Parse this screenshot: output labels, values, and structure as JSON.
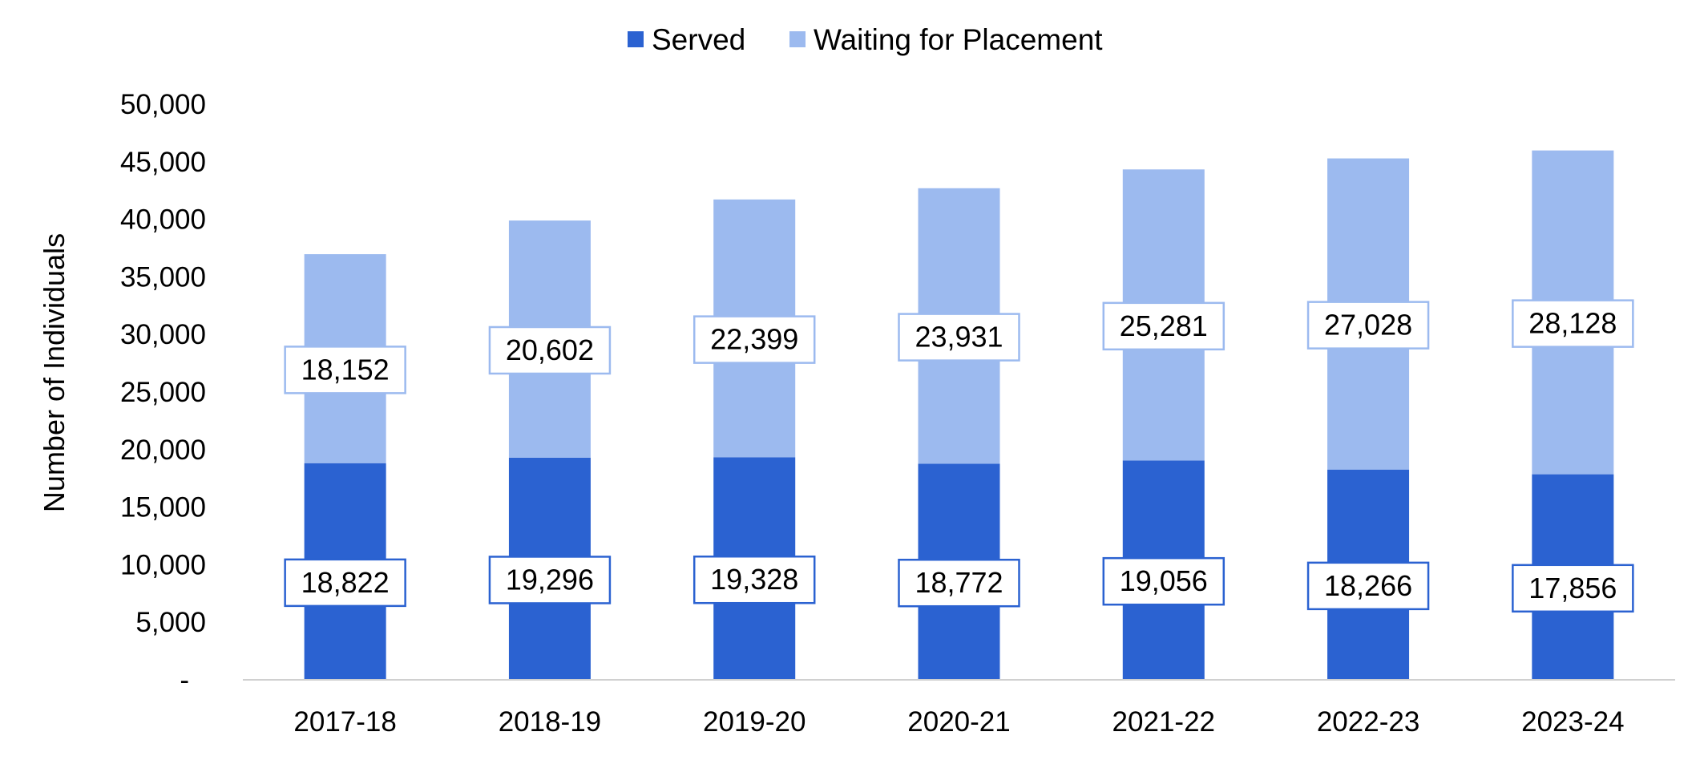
{
  "chart_data": {
    "type": "bar",
    "stacked": true,
    "categories": [
      "2017-18",
      "2018-19",
      "2019-20",
      "2020-21",
      "2021-22",
      "2022-23",
      "2023-24"
    ],
    "series": [
      {
        "name": "Served",
        "values": [
          18822,
          19296,
          19328,
          18772,
          19056,
          18266,
          17856
        ],
        "color": "#2B62D1",
        "labels": [
          "18,822",
          "19,296",
          "19,328",
          "18,772",
          "19,056",
          "18,266",
          "17,856"
        ]
      },
      {
        "name": "Waiting for Placement",
        "values": [
          18152,
          20602,
          22399,
          23931,
          25281,
          27028,
          28128
        ],
        "color": "#9CBAEF",
        "labels": [
          "18,152",
          "20,602",
          "22,399",
          "23,931",
          "25,281",
          "27,028",
          "28,128"
        ]
      }
    ],
    "ylabel": "Number of Individuals",
    "xlabel": "",
    "ylim": [
      0,
      50000
    ],
    "yticks": [
      0,
      5000,
      10000,
      15000,
      20000,
      25000,
      30000,
      35000,
      40000,
      45000,
      50000
    ],
    "ytick_labels": [
      "-",
      "5,000",
      "10,000",
      "15,000",
      "20,000",
      "25,000",
      "30,000",
      "35,000",
      "40,000",
      "45,000",
      "50,000"
    ],
    "legend_position": "top-center",
    "grid": false
  }
}
